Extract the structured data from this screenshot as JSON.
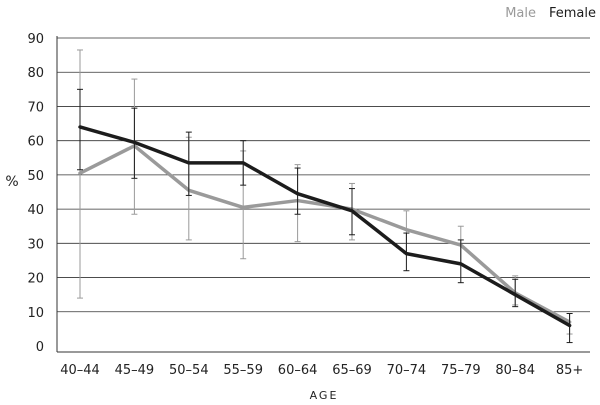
{
  "chart_data": {
    "type": "line",
    "title": "",
    "xlabel": "AGE",
    "ylabel": "%",
    "ylim": [
      0,
      90
    ],
    "yticks": [
      0,
      10,
      20,
      30,
      40,
      50,
      60,
      70,
      80,
      90
    ],
    "grid": true,
    "legend": "top-right",
    "categories": [
      "40–44",
      "45–49",
      "50–54",
      "55–59",
      "60–64",
      "65–69",
      "70–74",
      "75–79",
      "80–84",
      "85+"
    ],
    "series": [
      {
        "name": "Male",
        "color": "#9a9a9a",
        "values": [
          50.5,
          58.5,
          45.5,
          40.5,
          42.5,
          40,
          34,
          29.5,
          15.5,
          7
        ],
        "error_low": [
          14,
          38.5,
          31,
          25.5,
          30.5,
          31,
          27,
          24,
          12,
          3.5
        ],
        "error_high": [
          86.5,
          78,
          61,
          57,
          53,
          47.5,
          39.5,
          35,
          20.5,
          9.5
        ]
      },
      {
        "name": "Female",
        "color": "#1c1c1c",
        "values": [
          64,
          59.5,
          53.5,
          53.5,
          44.5,
          39.5,
          27,
          24,
          15,
          6
        ],
        "error_low": [
          51.5,
          49,
          44,
          47,
          38.5,
          32.5,
          22,
          18.5,
          11.5,
          1
        ],
        "error_high": [
          75,
          69.5,
          62.5,
          60,
          52,
          46,
          33,
          31,
          19.5,
          9.5
        ]
      }
    ]
  }
}
